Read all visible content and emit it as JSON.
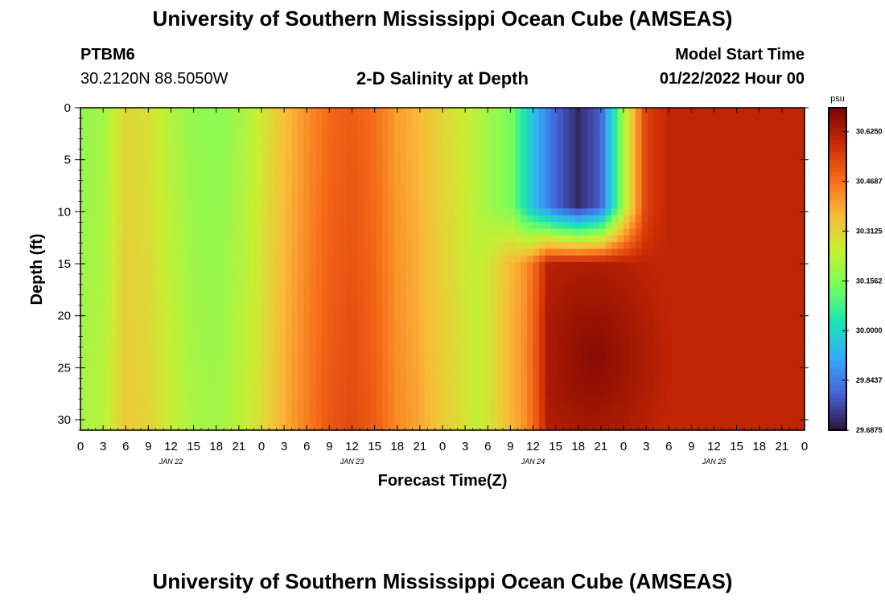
{
  "page": {
    "title": "University of Southern Mississippi Ocean Cube (AMSEAS)",
    "footer_title": "University of Southern Mississippi Ocean Cube (AMSEAS)",
    "station_id": "PTBM6",
    "station_coords": "30.2120N  88.5050W",
    "plot_title": "2-D Salinity at Depth",
    "model_start_label": "Model Start Time",
    "model_start_value": "01/22/2022 Hour 00"
  },
  "chart_data": {
    "type": "heatmap",
    "title": "2-D Salinity at Depth",
    "xlabel": "Forecast Time(Z)",
    "ylabel": "Depth (ft)",
    "x_range_hours": [
      0,
      96
    ],
    "y_range": [
      0,
      31
    ],
    "y_inverted": true,
    "x_tick_labels": [
      "0",
      "3",
      "6",
      "9",
      "12",
      "15",
      "18",
      "21",
      "0",
      "3",
      "6",
      "9",
      "12",
      "15",
      "18",
      "21",
      "0",
      "3",
      "6",
      "9",
      "12",
      "15",
      "18",
      "21",
      "0",
      "3",
      "6",
      "9",
      "12",
      "15",
      "18",
      "21",
      "0"
    ],
    "day_labels": [
      "JAN 22",
      "JAN 23",
      "JAN 24",
      "JAN 25"
    ],
    "y_ticks": [
      0,
      5,
      10,
      15,
      20,
      25,
      30
    ],
    "colorbar": {
      "unit": "psu",
      "tick_labels": [
        "30.6250",
        "30.4687",
        "30.3125",
        "30.1562",
        "30.0000",
        "29.8437",
        "29.6875"
      ],
      "range": [
        29.6875,
        30.7
      ],
      "colors": [
        "#30123b",
        "#4662d7",
        "#36aaf9",
        "#1ae4b6",
        "#72fe5e",
        "#c8ef34",
        "#faba39",
        "#f66b19",
        "#ca2a04",
        "#7a0403"
      ]
    },
    "surface_profile": {
      "hours": [
        0,
        3,
        6,
        9,
        12,
        15,
        18,
        21,
        24,
        27,
        30,
        33,
        36,
        39,
        42,
        45,
        48,
        51,
        54,
        57,
        60,
        63,
        66,
        69,
        72,
        75,
        78,
        81,
        84,
        87,
        90,
        93,
        96
      ],
      "salinity": [
        30.18,
        30.2,
        30.3,
        30.28,
        30.22,
        30.18,
        30.17,
        30.2,
        30.26,
        30.35,
        30.42,
        30.48,
        30.5,
        30.47,
        30.4,
        30.36,
        30.3,
        30.25,
        30.2,
        30.15,
        29.95,
        29.8,
        29.72,
        29.8,
        30.2,
        30.55,
        30.6,
        30.6,
        30.6,
        30.6,
        30.6,
        30.6,
        30.6
      ]
    },
    "halocline": {
      "depth_ft": [
        9.5,
        15.0
      ],
      "deep_salinity_max": 30.68,
      "deep_salinity_max_hour": 68,
      "deep_salinity_max_depth_ft": 24
    }
  }
}
